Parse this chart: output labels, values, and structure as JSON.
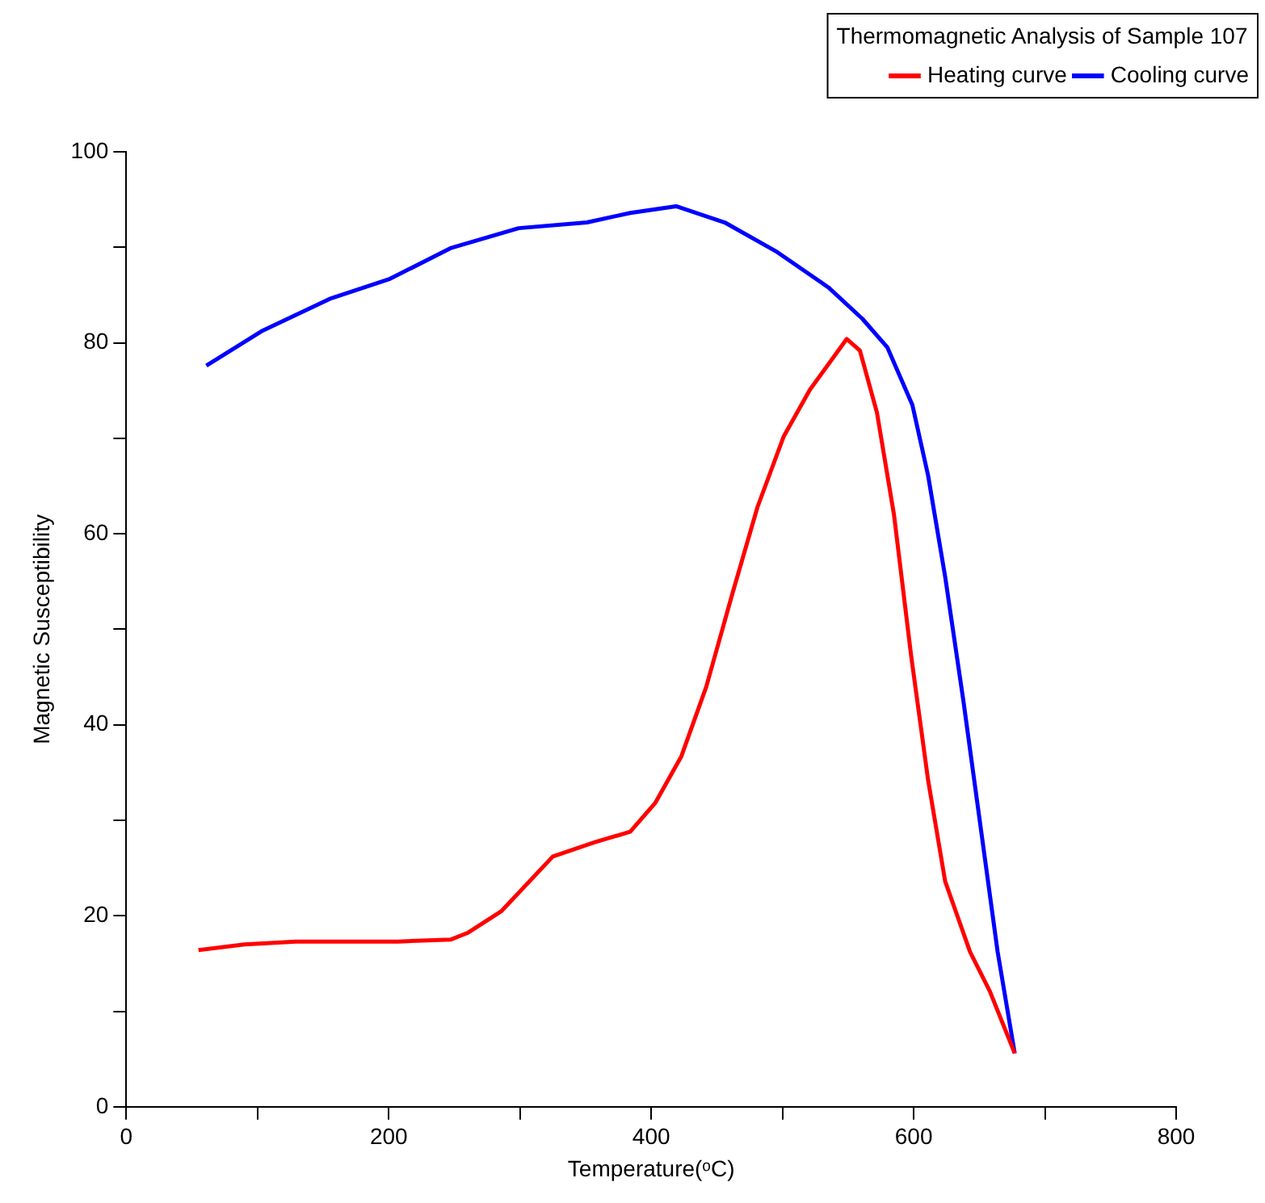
{
  "chart_data": {
    "type": "line",
    "xlabel": "Temperature(ᵒC)",
    "ylabel": "Magnetic Susceptibility",
    "legend_title": "Thermomagnetic Analysis of Sample 107",
    "legend": "top right",
    "grid": false,
    "marker": "none",
    "line_style": "solid",
    "xlim": [
      0,
      800
    ],
    "ylim": [
      0,
      100
    ],
    "xticks": [
      0,
      {
        "value": 100,
        "label": null
      },
      200,
      {
        "value": 300,
        "label": null
      },
      400,
      {
        "value": 500,
        "label": null
      },
      600,
      {
        "value": 700,
        "label": null
      },
      800
    ],
    "yticks": [
      0,
      {
        "value": 10,
        "label": null
      },
      20,
      {
        "value": 30,
        "label": null
      },
      40,
      {
        "value": 50,
        "label": null
      },
      60,
      {
        "value": 70,
        "label": null
      },
      80,
      {
        "value": 90,
        "label": null
      },
      100
    ],
    "series": [
      {
        "name": "Heating curve",
        "color": "#ff0000",
        "x": [
          55,
          90,
          129,
          168,
          207,
          247,
          260,
          286,
          325,
          357,
          384,
          403,
          423,
          442,
          462,
          481,
          501,
          521,
          540,
          549,
          559,
          572,
          585,
          598,
          611,
          624,
          643,
          658,
          677
        ],
        "values": [
          16.4,
          17.0,
          17.3,
          17.3,
          17.3,
          17.5,
          18.2,
          20.5,
          26.2,
          27.7,
          28.8,
          31.8,
          36.7,
          44,
          53.8,
          62.8,
          70.2,
          75.1,
          78.7,
          80.4,
          79.2,
          72.7,
          62,
          47.3,
          34.2,
          23.6,
          16.2,
          12.1,
          5.6
        ]
      },
      {
        "name": "Cooling curve",
        "color": "#0000ff",
        "x": [
          61,
          103,
          155,
          201,
          247,
          299,
          351,
          384,
          419,
          456,
          496,
          535,
          561,
          580,
          599,
          611,
          624,
          638,
          651,
          664,
          677
        ],
        "values": [
          77.6,
          81.2,
          84.6,
          86.7,
          89.9,
          92.0,
          92.6,
          93.6,
          94.3,
          92.6,
          89.5,
          85.8,
          82.5,
          79.5,
          73.5,
          66.1,
          55.5,
          42.4,
          29.3,
          16.2,
          5.6
        ]
      }
    ]
  }
}
